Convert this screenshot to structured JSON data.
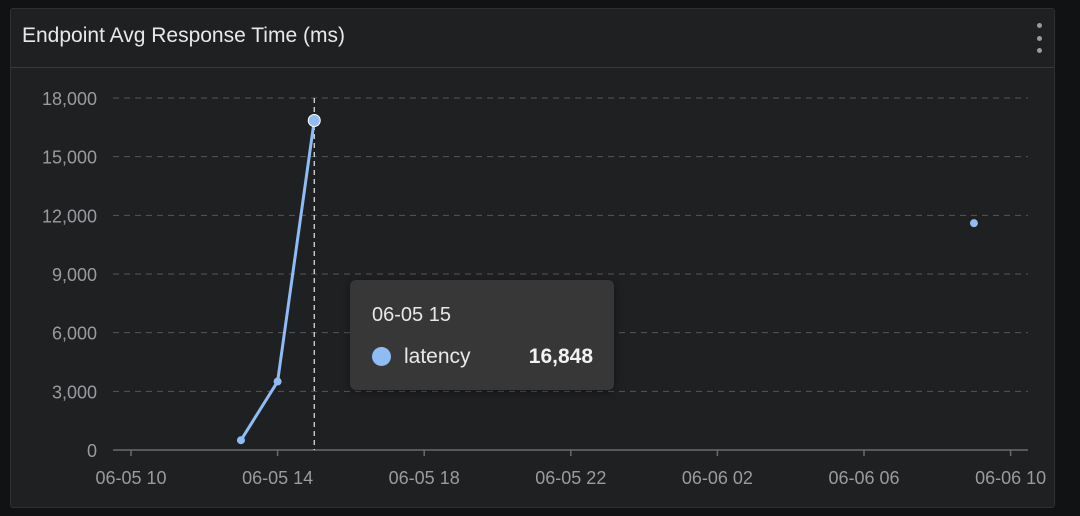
{
  "panel": {
    "title": "Endpoint Avg Response Time (ms)"
  },
  "tooltip": {
    "title": "06-05 15",
    "series_name": "latency",
    "value": "16,848"
  },
  "colors": {
    "series": "#8fbcf5",
    "grid": "#555659",
    "text": "#9a9b9f",
    "crosshair": "#e8e8e8"
  },
  "chart_data": {
    "type": "line",
    "title": "Endpoint Avg Response Time (ms)",
    "x_axis": "time",
    "x_ticks": [
      "06-05 10",
      "06-05 14",
      "06-05 18",
      "06-05 22",
      "06-06 02",
      "06-06 06",
      "06-06 10"
    ],
    "y_ticks": [
      "0",
      "3,000",
      "6,000",
      "9,000",
      "12,000",
      "15,000",
      "18,000"
    ],
    "ylim": [
      0,
      18000
    ],
    "grid": true,
    "series": [
      {
        "name": "latency",
        "points": [
          {
            "x": "2024-06-05 13:00",
            "y": 500
          },
          {
            "x": "2024-06-05 14:00",
            "y": 3500
          },
          {
            "x": "2024-06-05 15:00",
            "y": 16848
          },
          {
            "x": "2024-06-06 09:00",
            "y": 11600
          }
        ],
        "connected_through": "2024-06-05 15:00"
      }
    ],
    "crosshair_at": "2024-06-05 15:00"
  }
}
